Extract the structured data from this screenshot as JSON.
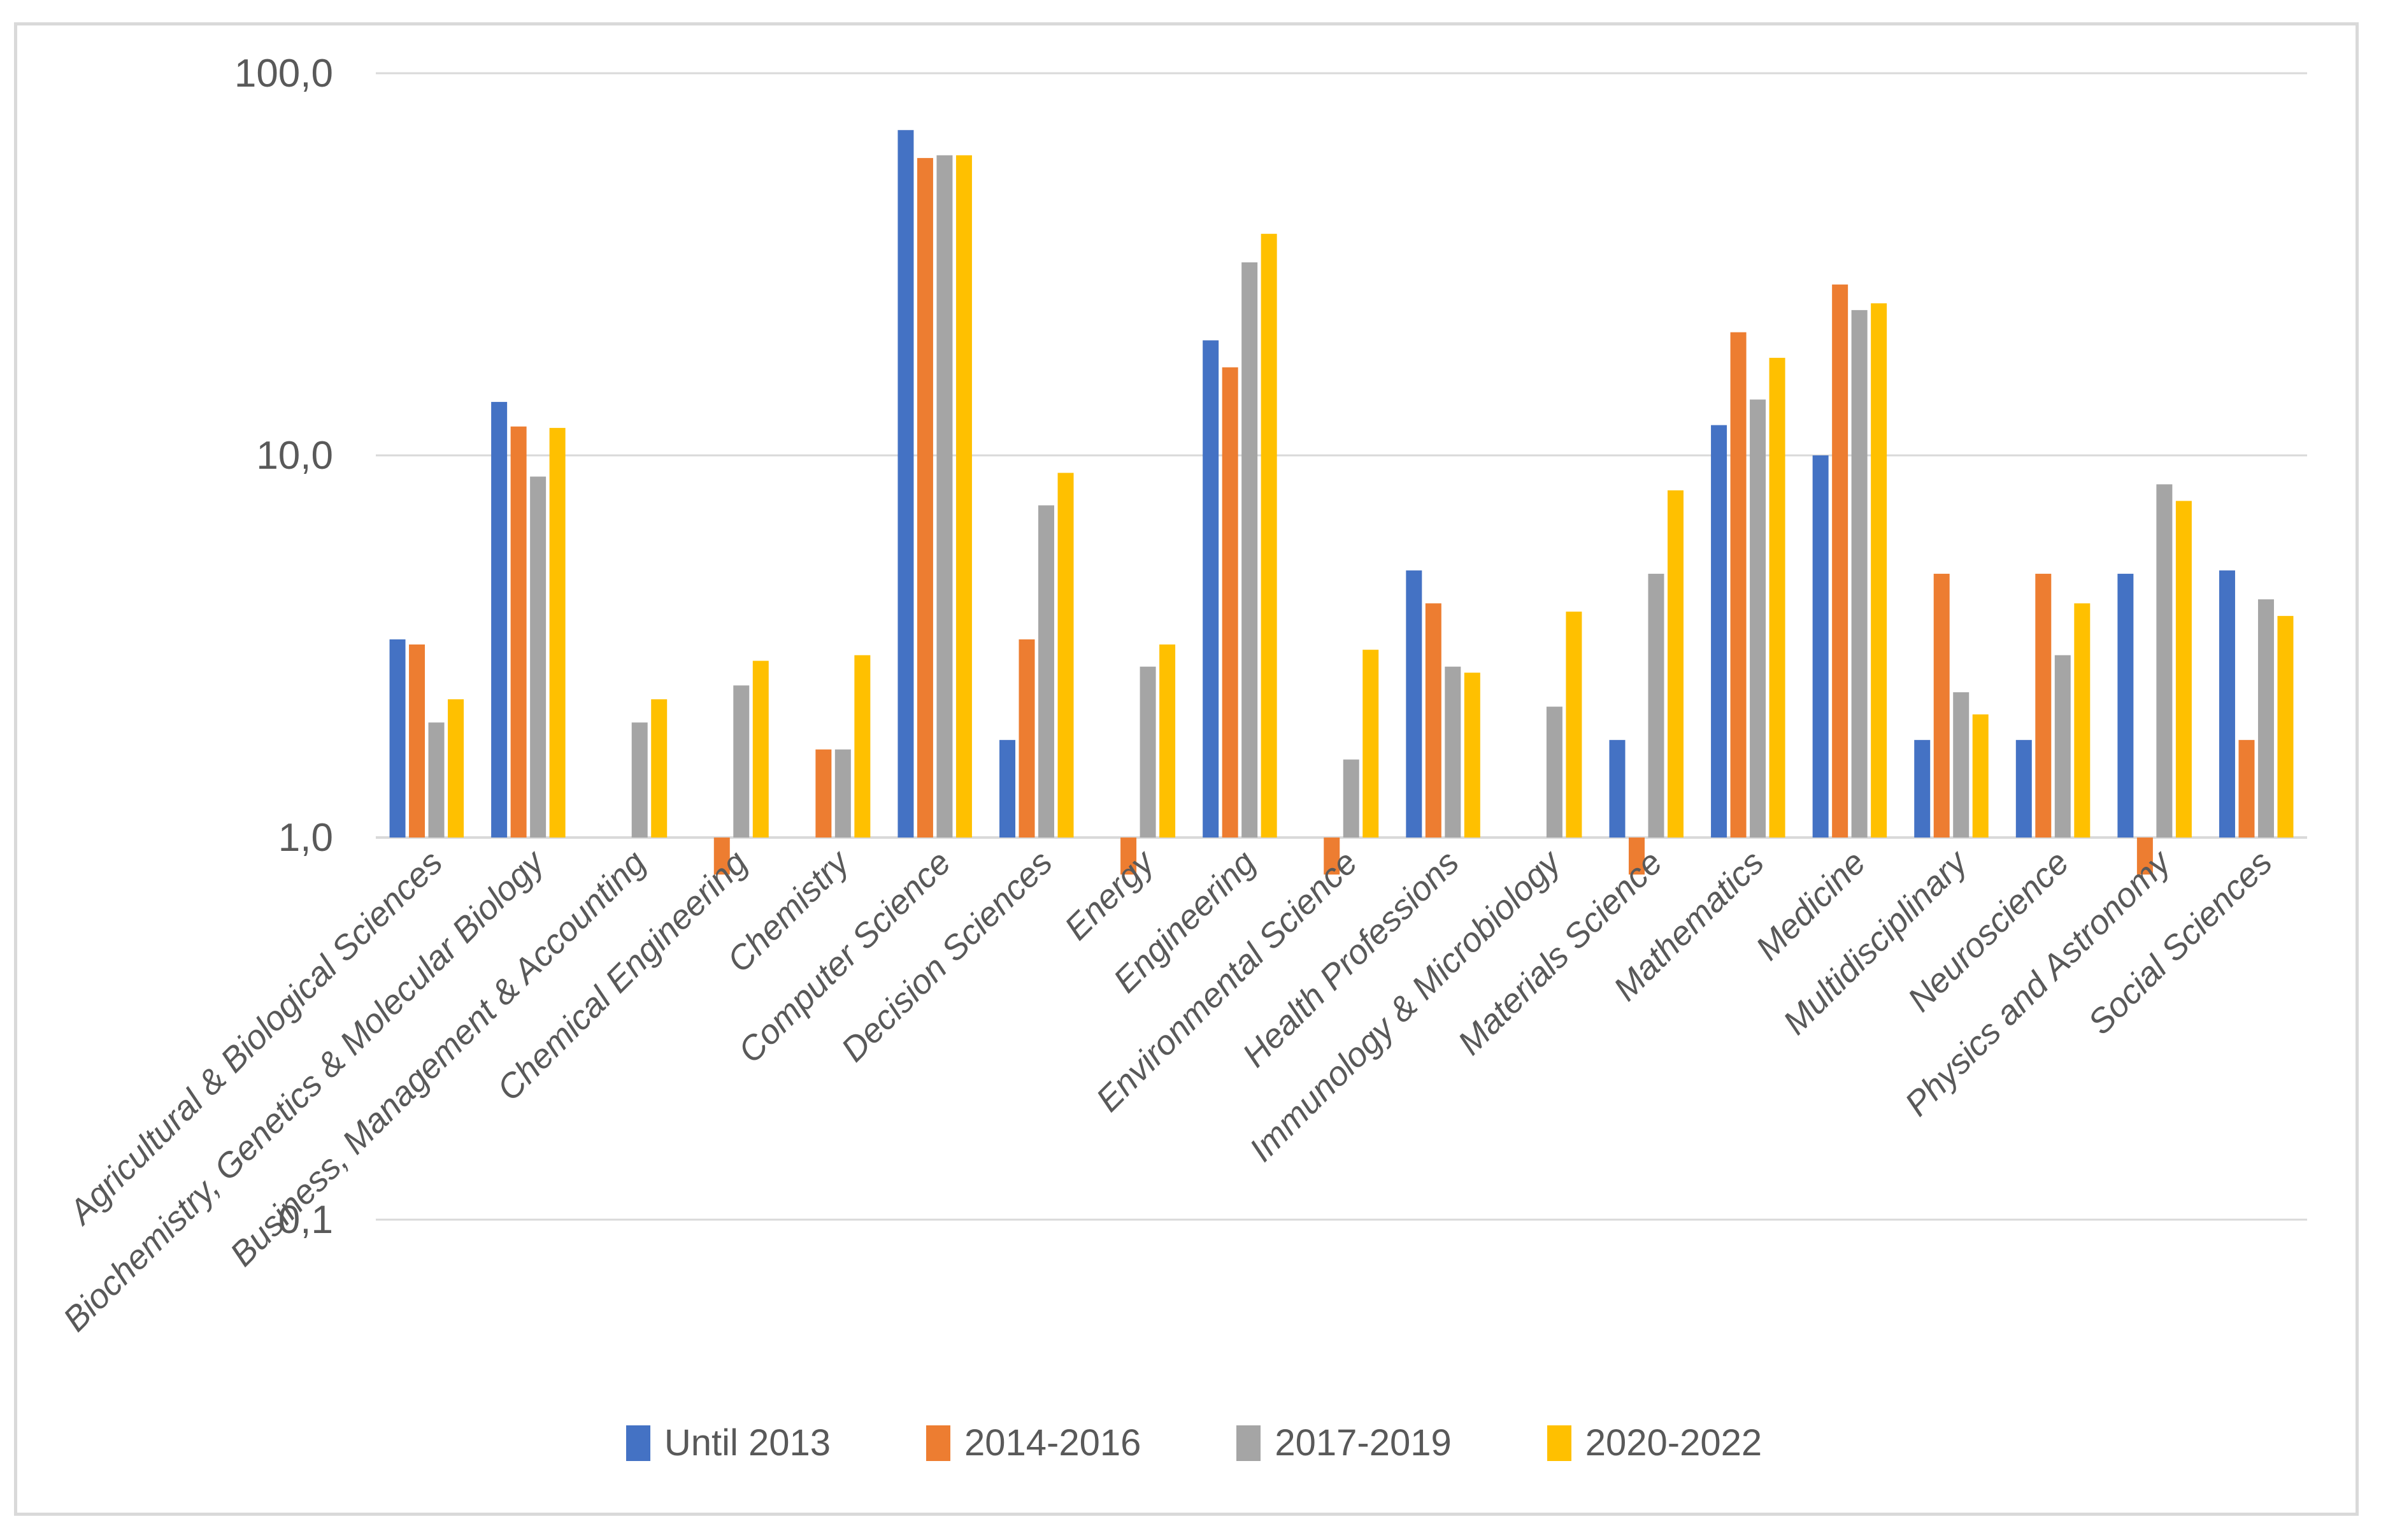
{
  "chart_data": {
    "type": "bar",
    "title": "",
    "xlabel": "",
    "ylabel": "",
    "y_scale": "log10",
    "ylim": [
      0.1,
      100
    ],
    "grid": "horizontal",
    "legend_position": "bottom",
    "axis_crosses_at": 1,
    "y_ticks": [
      {
        "label": "100,0",
        "value": 100
      },
      {
        "label": "10,0",
        "value": 10
      },
      {
        "label": "1,0",
        "value": 1
      },
      {
        "label": "0,1",
        "value": 0.1
      }
    ],
    "categories": [
      "Agricultural & Biological Sciences",
      "Biochemistry, Genetics & Molecular Biology",
      "Business, Management & Accounting",
      "Chemical Engineering",
      "Chemistry",
      "Computer Science",
      "Decision Sciences",
      "Energy",
      "Engineering",
      "Environmental Science",
      "Health Professions",
      "Immunology & Microbiology",
      "Materials Science",
      "Mathematics",
      "Medicine",
      "Multidisciplinary",
      "Neuroscience",
      "Physics and Astronomy",
      "Social Sciences"
    ],
    "series": [
      {
        "name": "Until 2013",
        "color": "#4472C4",
        "values": [
          3.3,
          13.8,
          null,
          null,
          null,
          71,
          1.8,
          null,
          20,
          null,
          5.0,
          null,
          1.8,
          12,
          10,
          1.8,
          1.8,
          4.9,
          5.0
        ]
      },
      {
        "name": "2014-2016",
        "color": "#ED7D31",
        "values": [
          3.2,
          11.9,
          null,
          0.8,
          1.7,
          60,
          3.3,
          0.8,
          17,
          0.8,
          4.1,
          null,
          0.8,
          21,
          28,
          4.9,
          4.9,
          0.8,
          1.8
        ]
      },
      {
        "name": "2017-2019",
        "color": "#A5A5A5",
        "values": [
          2.0,
          8.8,
          2.0,
          2.5,
          1.7,
          61,
          7.4,
          2.8,
          32,
          1.6,
          2.8,
          2.2,
          4.9,
          14,
          24,
          2.4,
          3.0,
          8.4,
          4.2
        ]
      },
      {
        "name": "2020-2022",
        "color": "#FFC000",
        "values": [
          2.3,
          11.8,
          2.3,
          2.9,
          3.0,
          61,
          9.0,
          3.2,
          38,
          3.1,
          2.7,
          3.9,
          8.1,
          18,
          25,
          2.1,
          4.1,
          7.6,
          3.8
        ]
      }
    ]
  }
}
